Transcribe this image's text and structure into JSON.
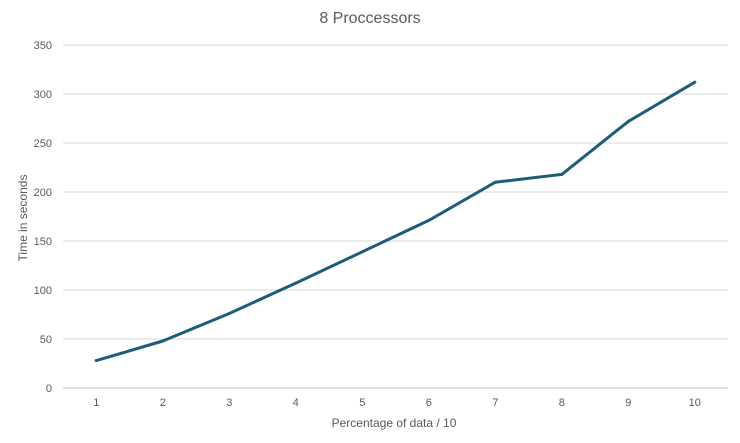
{
  "chart_data": {
    "type": "line",
    "title": "8 Proccessors",
    "xlabel": "Percentage of data / 10",
    "ylabel": "Time in seconds",
    "categories": [
      "1",
      "2",
      "3",
      "4",
      "5",
      "6",
      "7",
      "8",
      "9",
      "10"
    ],
    "series": [
      {
        "values": [
          28,
          48,
          76,
          107,
          139,
          171,
          210,
          218,
          272,
          312
        ],
        "color": "#1f5c7a"
      }
    ],
    "ylim": [
      0,
      350
    ],
    "yticks": [
      "0",
      "50",
      "100",
      "150",
      "200",
      "250",
      "300",
      "350"
    ],
    "grid": true,
    "legend": "none"
  }
}
